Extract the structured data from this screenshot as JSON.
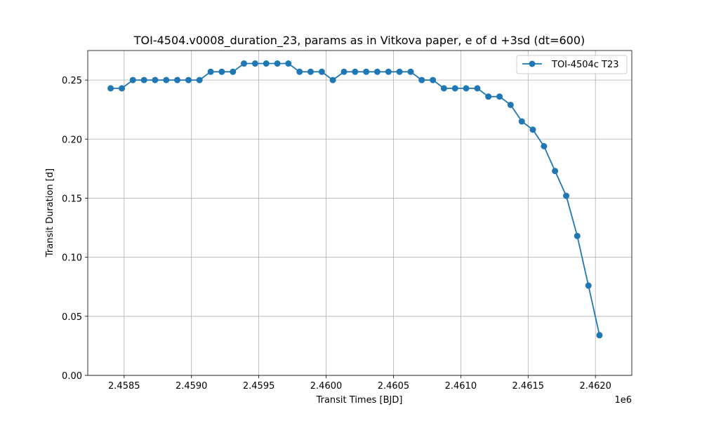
{
  "chart_data": {
    "type": "line",
    "title": "TOI-4504.v0008_duration_23, params as in Vitkova paper, e of d +3sd (dt=600)",
    "xlabel": "Transit Times [BJD]",
    "ylabel": "Transit Duration [d]",
    "x_offset_label": "1e6",
    "xlim": [
      2458230,
      2462270
    ],
    "ylim": [
      0.0,
      0.275
    ],
    "x_ticks": [
      2458500,
      2459000,
      2459500,
      2460000,
      2460500,
      2461000,
      2461500,
      2462000
    ],
    "x_tick_labels": [
      "2.4585",
      "2.4590",
      "2.4595",
      "2.4600",
      "2.4605",
      "2.4610",
      "2.4615",
      "2.4620"
    ],
    "y_ticks": [
      0.0,
      0.05,
      0.1,
      0.15,
      0.2,
      0.25
    ],
    "y_tick_labels": [
      "0.00",
      "0.05",
      "0.10",
      "0.15",
      "0.20",
      "0.25"
    ],
    "grid": true,
    "legend_position": "top-right",
    "series": [
      {
        "name": "TOI-4504c T23",
        "color": "#1f77b4",
        "marker": "circle",
        "x": [
          2458400,
          2458483,
          2458565,
          2458648,
          2458730,
          2458813,
          2458895,
          2458978,
          2459060,
          2459143,
          2459225,
          2459308,
          2459390,
          2459473,
          2459555,
          2459638,
          2459720,
          2459803,
          2459885,
          2459968,
          2460050,
          2460133,
          2460215,
          2460298,
          2460380,
          2460463,
          2460545,
          2460628,
          2460710,
          2460793,
          2460875,
          2460958,
          2461040,
          2461123,
          2461205,
          2461288,
          2461370,
          2461453,
          2461535,
          2461618,
          2461700,
          2461783,
          2461865,
          2461948,
          2462030
        ],
        "y": [
          0.243,
          0.243,
          0.25,
          0.25,
          0.25,
          0.25,
          0.25,
          0.25,
          0.25,
          0.257,
          0.257,
          0.257,
          0.264,
          0.264,
          0.264,
          0.264,
          0.264,
          0.257,
          0.257,
          0.257,
          0.25,
          0.257,
          0.257,
          0.257,
          0.257,
          0.257,
          0.257,
          0.257,
          0.25,
          0.25,
          0.243,
          0.243,
          0.243,
          0.243,
          0.236,
          0.236,
          0.229,
          0.215,
          0.208,
          0.194,
          0.173,
          0.152,
          0.118,
          0.076,
          0.034
        ]
      }
    ]
  }
}
